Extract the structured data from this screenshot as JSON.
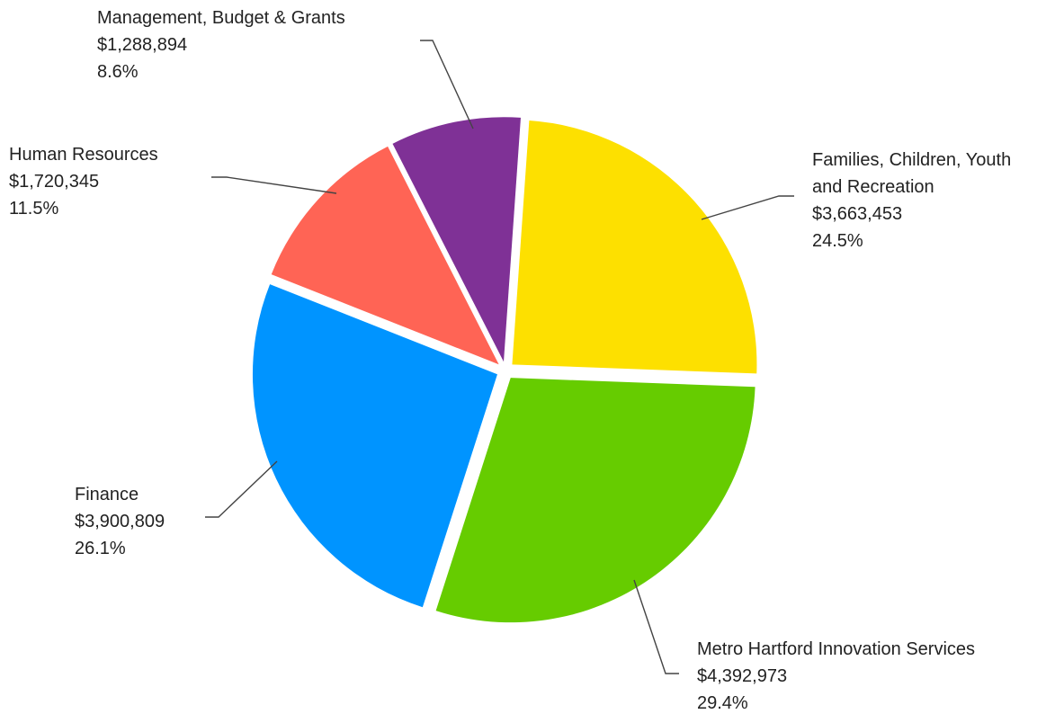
{
  "chart_data": {
    "type": "pie",
    "start_angle_deg": 4,
    "direction": "clockwise",
    "slices": [
      {
        "name": "Families, Children, Youth and Recreation",
        "label_lines": [
          "Families, Children, Youth",
          "and Recreation"
        ],
        "value": 3663453,
        "value_label": "$3,663,453",
        "percent_label": "24.5%",
        "color": "#FDE000"
      },
      {
        "name": "Metro Hartford Innovation Services",
        "label_lines": [
          "Metro Hartford Innovation Services"
        ],
        "value": 4392973,
        "value_label": "$4,392,973",
        "percent_label": "29.4%",
        "color": "#66CC00"
      },
      {
        "name": "Finance",
        "label_lines": [
          "Finance"
        ],
        "value": 3900809,
        "value_label": "$3,900,809",
        "percent_label": "26.1%",
        "color": "#0094FF"
      },
      {
        "name": "Human Resources",
        "label_lines": [
          "Human Resources"
        ],
        "value": 1720345,
        "value_label": "$1,720,345",
        "percent_label": "11.5%",
        "color": "#FF6455"
      },
      {
        "name": "Management, Budget & Grants",
        "label_lines": [
          "Management, Budget & Grants"
        ],
        "value": 1288894,
        "value_label": "$1,288,894",
        "percent_label": "8.6%",
        "color": "#7F3196"
      }
    ]
  }
}
